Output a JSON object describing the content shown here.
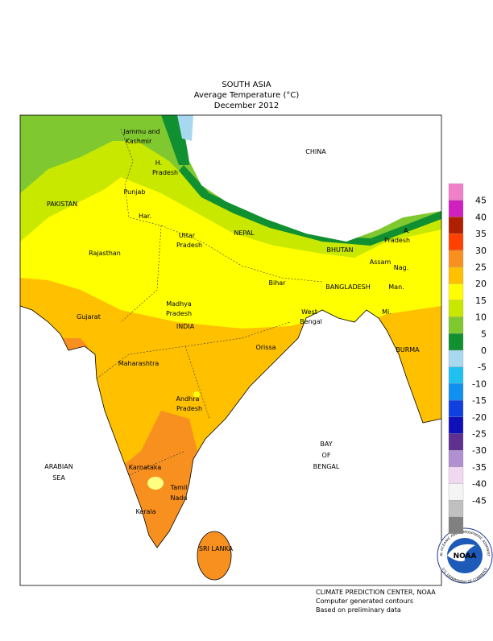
{
  "header": {
    "lines": [
      "SOUTH ASIA",
      "Average Temperature (°C)",
      "December 2012"
    ]
  },
  "map_labels": [
    {
      "lines": [
        "Jammu and",
        "Kashmir"
      ]
    },
    {
      "lines": [
        "H.",
        "Pradesh"
      ]
    },
    {
      "lines": [
        "Punjab"
      ]
    },
    {
      "lines": [
        "Har."
      ]
    },
    {
      "lines": [
        "PAKISTAN"
      ]
    },
    {
      "lines": [
        "CHINA"
      ]
    },
    {
      "lines": [
        "Rajasthan"
      ]
    },
    {
      "lines": [
        "Uttar",
        "Pradesh"
      ]
    },
    {
      "lines": [
        "NEPAL"
      ]
    },
    {
      "lines": [
        "BHUTAN"
      ]
    },
    {
      "lines": [
        "A.",
        "Pradesh"
      ]
    },
    {
      "lines": [
        "Assam"
      ]
    },
    {
      "lines": [
        "Nag."
      ]
    },
    {
      "lines": [
        "Man."
      ]
    },
    {
      "lines": [
        "Mi."
      ]
    },
    {
      "lines": [
        "BANGLADESH"
      ]
    },
    {
      "lines": [
        "Bihar"
      ]
    },
    {
      "lines": [
        "West",
        "Bengal"
      ]
    },
    {
      "lines": [
        "Madhya",
        "Pradesh"
      ]
    },
    {
      "lines": [
        "INDIA"
      ]
    },
    {
      "lines": [
        "Gujarat"
      ]
    },
    {
      "lines": [
        "Orissa"
      ]
    },
    {
      "lines": [
        "Maharashtra"
      ]
    },
    {
      "lines": [
        "Andhra",
        "Pradesh"
      ]
    },
    {
      "lines": [
        "BURMA"
      ]
    },
    {
      "lines": [
        "BAY",
        "OF",
        "BENGAL"
      ]
    },
    {
      "lines": [
        "ARABIAN",
        "SEA"
      ]
    },
    {
      "lines": [
        "Karnataka"
      ]
    },
    {
      "lines": [
        "Tamil",
        "Nadu"
      ]
    },
    {
      "lines": [
        "Kerala"
      ]
    },
    {
      "lines": [
        "SRI LANKA"
      ]
    }
  ],
  "legend": {
    "colors": [
      "#f080c8",
      "#d020c0",
      "#b02000",
      "#ff4000",
      "#f89020",
      "#ffc000",
      "#ffff00",
      "#c8e800",
      "#80c830",
      "#109030",
      "#a8d8f0",
      "#20c0f0",
      "#1090f0",
      "#1040e0",
      "#1010b8",
      "#603090",
      "#b090d0",
      "#f0d8f0",
      "#f4f4f4",
      "#c0c0c0",
      "#808080"
    ],
    "labels": [
      "45",
      "40",
      "35",
      "30",
      "25",
      "20",
      "15",
      "10",
      "5",
      "0",
      "-5",
      "-10",
      "-15",
      "-20",
      "-25",
      "-30",
      "-35",
      "-40",
      "-45"
    ]
  },
  "footer": {
    "lines": [
      "CLIMATE PREDICTION CENTER, NOAA",
      "Computer generated contours",
      "Based on preliminary data"
    ]
  },
  "logo": {
    "name": "NOAA",
    "ring_top": "NATIONAL OCEANIC AND ATMOSPHERIC ADMINISTRATION",
    "ring_bottom": "U.S. DEPARTMENT OF COMMERCE"
  }
}
